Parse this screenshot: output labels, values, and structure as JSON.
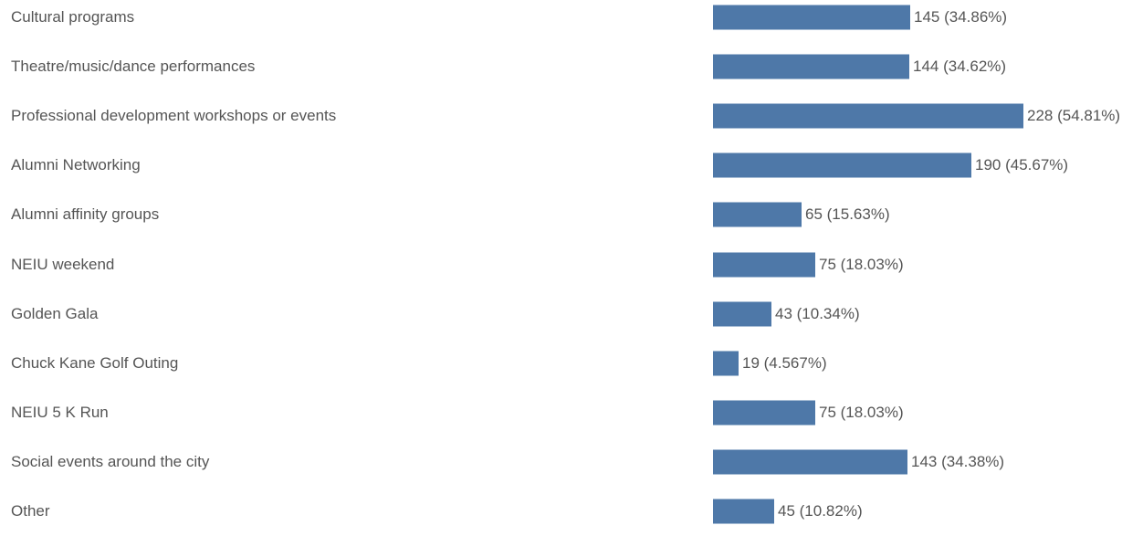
{
  "chart_data": {
    "type": "bar",
    "orientation": "horizontal",
    "categories": [
      "Cultural programs",
      "Theatre/music/dance performances",
      "Professional development workshops or events",
      "Alumni Networking",
      "Alumni affinity groups",
      "NEIU weekend",
      "Golden Gala",
      "Chuck Kane Golf Outing",
      "NEIU 5 K Run",
      "Social events around the city",
      "Other"
    ],
    "values": [
      145,
      144,
      228,
      190,
      65,
      75,
      43,
      19,
      75,
      143,
      45
    ],
    "data_labels": [
      "145 (34.86%)",
      "144 (34.62%)",
      "228 (54.81%)",
      "190 (45.67%)",
      "65 (15.63%)",
      "75 (18.03%)",
      "43 (10.34%)",
      "19 (4.567%)",
      "75 (18.03%)",
      "143 (34.38%)",
      "45 (10.82%)"
    ],
    "xlim": [
      0,
      228
    ],
    "grid": false,
    "legend": "none",
    "bar_color": "#4e78a8"
  }
}
